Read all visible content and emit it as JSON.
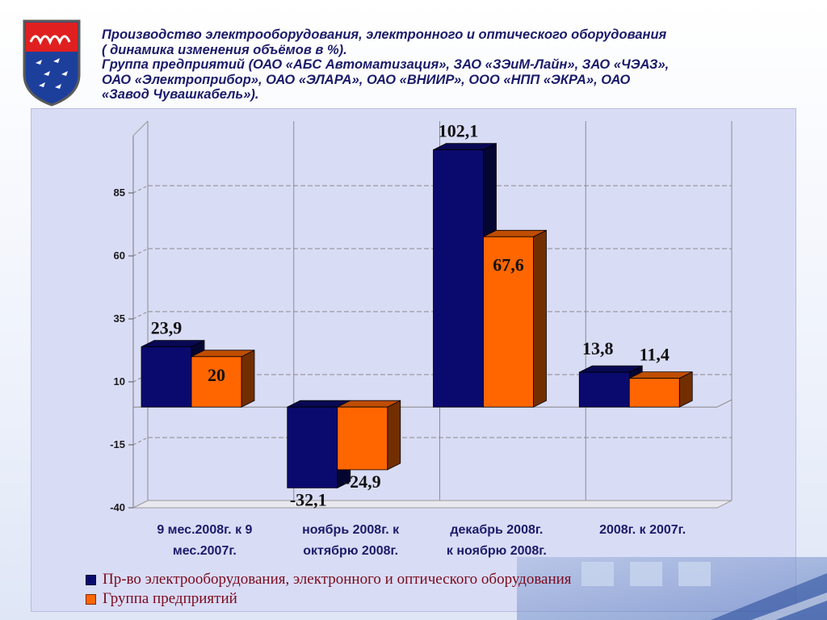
{
  "title": {
    "lines": [
      "Производство электрооборудования, электронного и оптического оборудования",
      " ( динамика изменения объёмов в %).",
      "Группа предприятий (ОАО «АБС  Автоматизация», ЗАО «ЗЭиМ-Лайн», ЗАО «ЧЭАЗ»,",
      "ОАО «Электроприбор», ОАО «ЭЛАРА», ОАО «ВНИИР», ООО «НПП «ЭКРА», ОАО",
      "«Завод Чувашкабель»)."
    ]
  },
  "chart_data": {
    "type": "bar",
    "title": "",
    "xlabel": "",
    "ylabel": "",
    "ylim": [
      -40,
      110
    ],
    "yticks": [
      -40,
      -15,
      10,
      35,
      60,
      85
    ],
    "ytick_labels": [
      "-40",
      "-15",
      "10",
      "35",
      "60",
      "85"
    ],
    "grid": true,
    "legend_position": "bottom",
    "categories": [
      [
        "9 мес.2008г. к 9",
        "мес.2007г."
      ],
      [
        "ноябрь 2008г. к",
        "октябрю 2008г."
      ],
      [
        "декабрь 2008г.",
        "к ноябрю 2008г."
      ],
      [
        "2008г. к 2007г."
      ]
    ],
    "series": [
      {
        "name": "Пр-во электрооборудования, электронного и оптического оборудования",
        "color": "#0a0a6e",
        "values": [
          23.9,
          -32.1,
          102.1,
          13.8
        ],
        "labels": [
          "23,9",
          "-32,1",
          "102,1",
          "13,8"
        ]
      },
      {
        "name": "Группа предприятий",
        "color": "#ff6600",
        "values": [
          20,
          -24.9,
          67.6,
          11.4
        ],
        "labels": [
          "20",
          "-24,9",
          "67,6",
          "11,4"
        ]
      }
    ]
  }
}
